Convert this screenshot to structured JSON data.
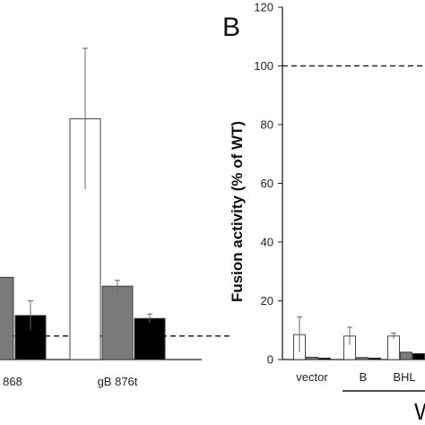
{
  "chart_data": [
    {
      "type": "bar",
      "panel_label": "",
      "categories": [
        "868",
        "gB 876t"
      ],
      "ylim": [
        0,
        120
      ],
      "series": [
        {
          "values": [
            null,
            82
          ],
          "errors": [
            null,
            24
          ],
          "color": "#ffffff"
        },
        {
          "values": [
            28,
            25
          ],
          "errors": [
            null,
            2
          ],
          "color": "#7a7a7a"
        },
        {
          "values": [
            15,
            14
          ],
          "errors": [
            5,
            1.5
          ],
          "color": "#000000"
        }
      ],
      "reference_line": 8,
      "grid": false
    },
    {
      "type": "bar",
      "panel_label": "B",
      "ylabel": "Fusion activity (% of WT)",
      "yticks": [
        "0",
        "20",
        "40",
        "60",
        "80",
        "100",
        "120"
      ],
      "ylim": [
        0,
        120
      ],
      "categories": [
        "vector",
        "B",
        "BHL"
      ],
      "series": [
        {
          "values": [
            8.5,
            8,
            8
          ],
          "errors": [
            6,
            3,
            1
          ],
          "color": "#ffffff"
        },
        {
          "values": [
            0.8,
            0.7,
            2.5
          ],
          "errors": [
            0,
            0,
            0
          ],
          "color": "#7a7a7a"
        },
        {
          "values": [
            0.5,
            0.5,
            2
          ],
          "errors": [
            0,
            0,
            0
          ],
          "color": "#000000"
        }
      ],
      "reference_line": 100,
      "group_label": "W",
      "grid": false
    }
  ]
}
